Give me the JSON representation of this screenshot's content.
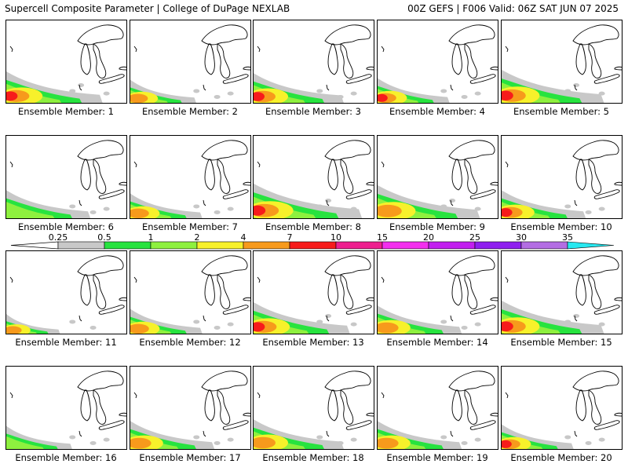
{
  "header": {
    "left": "Supercell Composite Parameter | College of DuPage NEXLAB",
    "right": "00Z GEFS | F006 Valid: 06Z SAT JUN 07 2025"
  },
  "legend": {
    "ticks": [
      "0.25",
      "0.5",
      "1",
      "2",
      "4",
      "7",
      "10",
      "15",
      "20",
      "25",
      "30",
      "35"
    ],
    "colors": [
      "#c8c8c8",
      "#27e33f",
      "#8ef03f",
      "#f7f12b",
      "#f79a1c",
      "#f71b1b",
      "#ee1f8f",
      "#f32fee",
      "#c21fef",
      "#8f1fef",
      "#b36de3",
      "#27e8f0"
    ]
  },
  "members": [
    {
      "label": "Ensemble Member: 1",
      "intensity": 3,
      "extent": 0.8
    },
    {
      "label": "Ensemble Member: 2",
      "intensity": 2,
      "extent": 0.55
    },
    {
      "label": "Ensemble Member: 3",
      "intensity": 3,
      "extent": 0.75
    },
    {
      "label": "Ensemble Member: 4",
      "intensity": 3,
      "extent": 0.6
    },
    {
      "label": "Ensemble Member: 5",
      "intensity": 3,
      "extent": 0.85
    },
    {
      "label": "Ensemble Member: 6",
      "intensity": 1,
      "extent": 0.7
    },
    {
      "label": "Ensemble Member: 7",
      "intensity": 2,
      "extent": 0.6
    },
    {
      "label": "Ensemble Member: 8",
      "intensity": 3,
      "extent": 0.9
    },
    {
      "label": "Ensemble Member: 9",
      "intensity": 2,
      "extent": 0.85
    },
    {
      "label": "Ensemble Member: 10",
      "intensity": 3,
      "extent": 0.7
    },
    {
      "label": "Ensemble Member: 11",
      "intensity": 2,
      "extent": 0.45
    },
    {
      "label": "Ensemble Member: 12",
      "intensity": 2,
      "extent": 0.6
    },
    {
      "label": "Ensemble Member: 13",
      "intensity": 3,
      "extent": 0.8
    },
    {
      "label": "Ensemble Member: 14",
      "intensity": 2,
      "extent": 0.7
    },
    {
      "label": "Ensemble Member: 15",
      "intensity": 3,
      "extent": 0.85
    },
    {
      "label": "Ensemble Member: 16",
      "intensity": 1,
      "extent": 0.55
    },
    {
      "label": "Ensemble Member: 17",
      "intensity": 2,
      "extent": 0.7
    },
    {
      "label": "Ensemble Member: 18",
      "intensity": 2,
      "extent": 0.75
    },
    {
      "label": "Ensemble Member: 19",
      "intensity": 2,
      "extent": 0.7
    },
    {
      "label": "Ensemble Member: 20",
      "intensity": 3,
      "extent": 0.6
    }
  ]
}
